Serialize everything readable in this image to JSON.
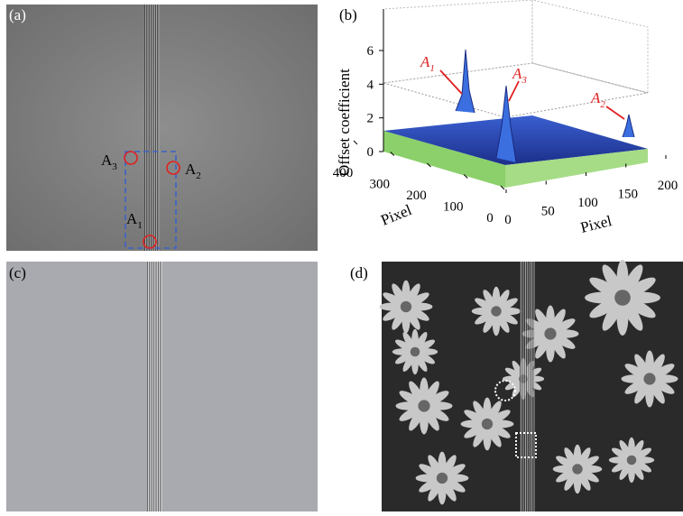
{
  "panels": [
    {
      "label": "(a)",
      "annotations": [
        {
          "letter": "A",
          "sub": "3"
        },
        {
          "letter": "A",
          "sub": "2"
        },
        {
          "letter": "A",
          "sub": "1"
        }
      ]
    },
    {
      "label": "(b)",
      "zlabel": "Offset coefficient",
      "zticks": [
        0,
        2,
        4,
        6
      ],
      "left_axis_label": "Pixel",
      "left_ticks": [
        400,
        300,
        200,
        100,
        0
      ],
      "right_axis_label": "Pixel",
      "right_ticks": [
        0,
        50,
        100,
        150,
        200
      ],
      "annotations": [
        {
          "letter": "A",
          "sub": "1"
        },
        {
          "letter": "A",
          "sub": "3"
        },
        {
          "letter": "A",
          "sub": "2"
        }
      ]
    },
    {
      "label": "(c)"
    },
    {
      "label": "(d)"
    }
  ]
}
